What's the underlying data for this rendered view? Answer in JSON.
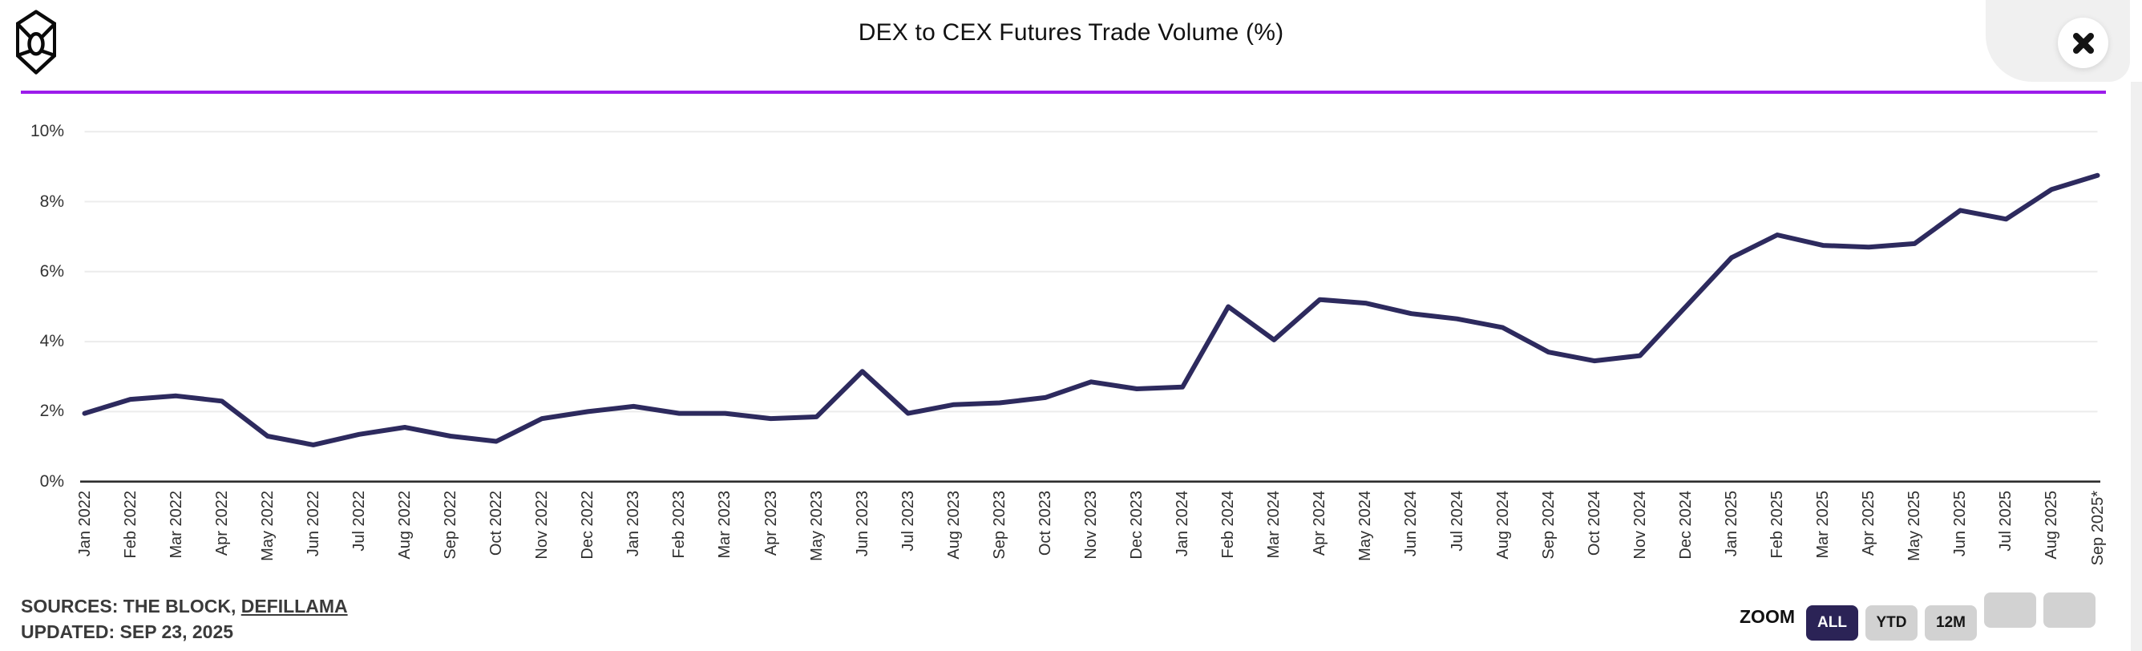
{
  "header": {
    "title": "DEX to CEX Futures Trade Volume (%)"
  },
  "chart_data": {
    "type": "line",
    "title": "DEX to CEX Futures Trade Volume (%)",
    "x": [
      "Jan 2022",
      "Feb 2022",
      "Mar 2022",
      "Apr 2022",
      "May 2022",
      "Jun 2022",
      "Jul 2022",
      "Aug 2022",
      "Sep 2022",
      "Oct 2022",
      "Nov 2022",
      "Dec 2022",
      "Jan 2023",
      "Feb 2023",
      "Mar 2023",
      "Apr 2023",
      "May 2023",
      "Jun 2023",
      "Jul 2023",
      "Aug 2023",
      "Sep 2023",
      "Oct 2023",
      "Nov 2023",
      "Dec 2023",
      "Jan 2024",
      "Feb 2024",
      "Mar 2024",
      "Apr 2024",
      "May 2024",
      "Jun 2024",
      "Jul 2024",
      "Aug 2024",
      "Sep 2024",
      "Oct 2024",
      "Nov 2024",
      "Dec 2024",
      "Jan 2025",
      "Feb 2025",
      "Mar 2025",
      "Apr 2025",
      "May 2025",
      "Jun 2025",
      "Jul 2025",
      "Aug 2025",
      "Sep 2025*"
    ],
    "series": [
      {
        "name": "DEX to CEX Futures Trade Volume (%)",
        "values": [
          1.95,
          2.35,
          2.45,
          2.3,
          1.3,
          1.05,
          1.35,
          1.55,
          1.3,
          1.15,
          1.8,
          2.0,
          2.15,
          1.95,
          1.95,
          1.8,
          1.85,
          3.15,
          1.95,
          2.2,
          2.25,
          2.4,
          2.85,
          2.65,
          2.7,
          5.0,
          4.05,
          5.2,
          5.1,
          4.8,
          4.65,
          4.4,
          3.7,
          3.45,
          3.6,
          5.0,
          6.4,
          7.05,
          6.75,
          6.7,
          6.8,
          7.75,
          7.5,
          8.35,
          8.75
        ]
      }
    ],
    "xlabel": "",
    "ylabel": "",
    "ylim": [
      0,
      10
    ],
    "y_ticks": [
      {
        "value": 0,
        "label": "0%"
      },
      {
        "value": 2,
        "label": "2%"
      },
      {
        "value": 4,
        "label": "4%"
      },
      {
        "value": 6,
        "label": "6%"
      },
      {
        "value": 8,
        "label": "8%"
      },
      {
        "value": 10,
        "label": "10%"
      }
    ],
    "grid": true,
    "legend": "none",
    "line_color": "#2d2a5e"
  },
  "footer": {
    "sources_prefix": "SOURCES: THE BLOCK, ",
    "sources_link": "DEFILLAMA",
    "updated": "UPDATED: SEP 23, 2025"
  },
  "zoom": {
    "label": "ZOOM",
    "buttons": [
      {
        "label": "ALL",
        "active": true
      },
      {
        "label": "YTD",
        "active": false
      },
      {
        "label": "12M",
        "active": false
      },
      {
        "label": "",
        "active": false
      },
      {
        "label": "",
        "active": false
      }
    ]
  },
  "colors": {
    "accent_divider": "#9c1ceb",
    "series_line": "#2d2a5e",
    "active_button": "#2b2356",
    "inactive_button": "#d2d2d2",
    "gridline": "#ececec",
    "axis_line": "#2e2e2e",
    "text": "#333333"
  }
}
